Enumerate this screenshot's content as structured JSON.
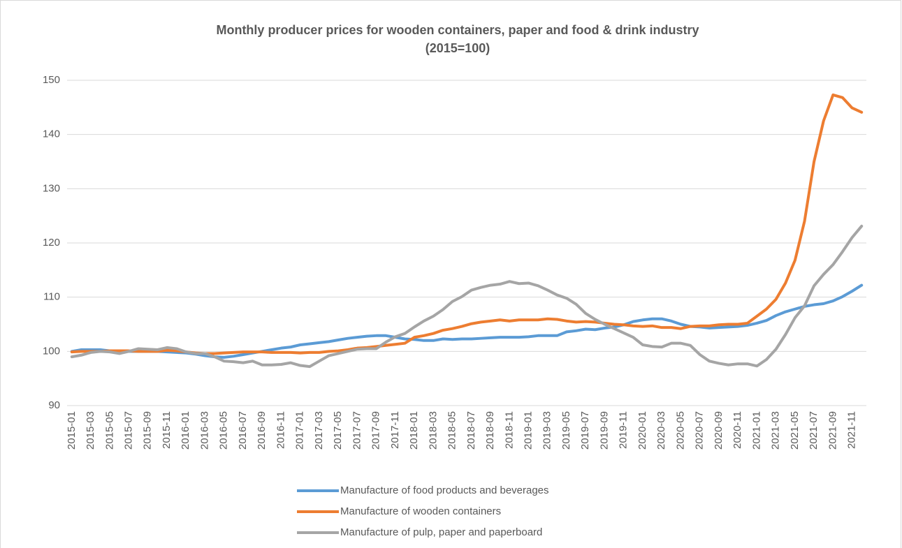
{
  "chart_data": {
    "type": "line",
    "title": "Monthly producer prices for wooden containers, paper and food & drink industry",
    "subtitle": "(2015=100)",
    "categories": [
      "2015-01",
      null,
      "2015-03",
      null,
      "2015-05",
      null,
      "2015-07",
      null,
      "2015-09",
      null,
      "2015-11",
      null,
      "2016-01",
      null,
      "2016-03",
      null,
      "2016-05",
      null,
      "2016-07",
      null,
      "2016-09",
      null,
      "2016-11",
      null,
      "2017-01",
      null,
      "2017-03",
      null,
      "2017-05",
      null,
      "2017-07",
      null,
      "2017-09",
      null,
      "2017-11",
      null,
      "2018-01",
      null,
      "2018-03",
      null,
      "2018-05",
      null,
      "2018-07",
      null,
      "2018-09",
      null,
      "2018-11",
      null,
      "2019-01",
      null,
      "2019-03",
      null,
      "2019-05",
      null,
      "2019-07",
      null,
      "2019-09",
      null,
      "2019-11",
      null,
      "2020-01",
      null,
      "2020-03",
      null,
      "2020-05",
      null,
      "2020-07",
      null,
      "2020-09",
      null,
      "2020-11",
      null,
      "2021-01",
      null,
      "2021-03",
      null,
      "2021-05",
      null,
      "2021-07",
      null,
      "2021-09",
      null,
      "2021-11",
      null
    ],
    "series": [
      {
        "name": "Manufacture of food products and beverages",
        "color": "#5b9bd5",
        "values": [
          100,
          100.3,
          100.3,
          100.3,
          100.1,
          100,
          100,
          100,
          100,
          100,
          99.9,
          99.8,
          99.7,
          99.5,
          99.2,
          99,
          98.9,
          99.1,
          99.4,
          99.7,
          100,
          100.3,
          100.6,
          100.8,
          101.2,
          101.4,
          101.6,
          101.8,
          102.1,
          102.4,
          102.6,
          102.8,
          102.9,
          102.9,
          102.6,
          102.3,
          102.2,
          102,
          102,
          102.3,
          102.2,
          102.3,
          102.3,
          102.4,
          102.5,
          102.6,
          102.6,
          102.6,
          102.7,
          102.9,
          102.9,
          102.9,
          103.6,
          103.8,
          104.1,
          104,
          104.3,
          104.5,
          104.9,
          105.5,
          105.8,
          106,
          106,
          105.6,
          105,
          104.6,
          104.5,
          104.3,
          104.4,
          104.5,
          104.6,
          104.8,
          105.2,
          105.7,
          106.6,
          107.3,
          107.8,
          108.3,
          108.6,
          108.8,
          109.3,
          110.1,
          111.1,
          112.2
        ]
      },
      {
        "name": "Manufacture of wooden containers",
        "color": "#ed7d31",
        "values": [
          99.9,
          100,
          100,
          100,
          100.1,
          100.1,
          100.1,
          100,
          100,
          100,
          100.2,
          100.1,
          99.9,
          99.7,
          99.6,
          99.6,
          99.7,
          99.8,
          99.9,
          99.9,
          99.9,
          99.8,
          99.8,
          99.8,
          99.7,
          99.8,
          99.8,
          100,
          100.1,
          100.3,
          100.6,
          100.7,
          100.9,
          101.1,
          101.3,
          101.5,
          102.6,
          102.9,
          103.3,
          103.9,
          104.2,
          104.6,
          105.1,
          105.4,
          105.6,
          105.8,
          105.6,
          105.8,
          105.8,
          105.8,
          106,
          105.9,
          105.6,
          105.4,
          105.5,
          105.4,
          105.2,
          105,
          104.9,
          104.7,
          104.6,
          104.7,
          104.4,
          104.4,
          104.2,
          104.6,
          104.7,
          104.7,
          104.9,
          105,
          105,
          105.2,
          106.5,
          107.8,
          109.6,
          112.6,
          116.8,
          124,
          135,
          142.5,
          147.3,
          146.8,
          144.9,
          144.1
        ]
      },
      {
        "name": "Manufacture of pulp, paper and paperboard",
        "color": "#a5a5a5",
        "values": [
          99,
          99.3,
          99.8,
          100,
          99.9,
          99.6,
          100,
          100.5,
          100.4,
          100.3,
          100.7,
          100.5,
          99.9,
          99.6,
          99.6,
          99,
          98.2,
          98.1,
          97.9,
          98.2,
          97.5,
          97.5,
          97.6,
          97.9,
          97.4,
          97.2,
          98.2,
          99.2,
          99.6,
          100,
          100.4,
          100.5,
          100.5,
          101.7,
          102.7,
          103.3,
          104.5,
          105.6,
          106.5,
          107.7,
          109.2,
          110.1,
          111.3,
          111.8,
          112.2,
          112.4,
          112.9,
          112.5,
          112.6,
          112.1,
          111.3,
          110.4,
          109.8,
          108.7,
          107,
          105.9,
          105,
          104.2,
          103.4,
          102.6,
          101.2,
          100.9,
          100.8,
          101.5,
          101.5,
          101.1,
          99.4,
          98.2,
          97.8,
          97.5,
          97.7,
          97.7,
          97.3,
          98.5,
          100.4,
          103.1,
          106.2,
          108.4,
          112.1,
          114.2,
          116,
          118.4,
          121,
          123.1
        ]
      }
    ],
    "ylim": [
      90,
      150
    ],
    "yticks": [
      90,
      100,
      110,
      120,
      130,
      140,
      150
    ],
    "grid": true,
    "legend": "bottom"
  }
}
